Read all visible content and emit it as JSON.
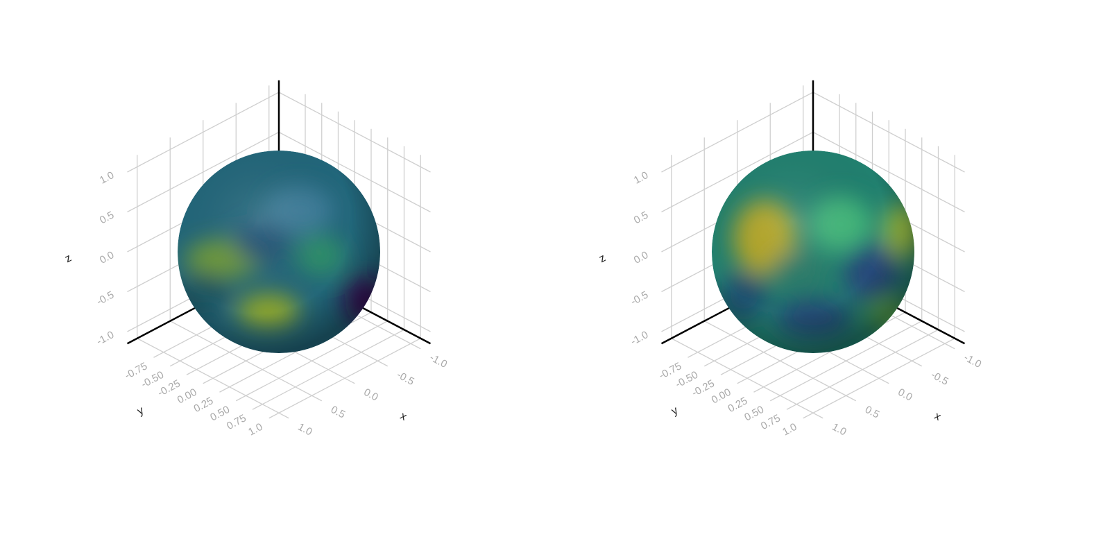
{
  "chart_data": [
    {
      "type": "surface3d",
      "xlabel": "x",
      "ylabel": "y",
      "zlabel": "z",
      "xlim": [
        -1.15,
        1.15
      ],
      "ylim": [
        -1.15,
        1.15
      ],
      "zlim": [
        -1.15,
        1.15
      ],
      "xticks": [
        {
          "value": -1,
          "label": "-1.0"
        },
        {
          "value": -0.5,
          "label": "-0.5"
        },
        {
          "value": 0,
          "label": "0.0"
        },
        {
          "value": 0.5,
          "label": "0.5"
        },
        {
          "value": 1,
          "label": "1.0"
        }
      ],
      "yticks": [
        {
          "value": -0.75,
          "label": "-0.75"
        },
        {
          "value": -0.5,
          "label": "-0.50"
        },
        {
          "value": -0.25,
          "label": "-0.25"
        },
        {
          "value": 0,
          "label": "0.00"
        },
        {
          "value": 0.25,
          "label": "0.25"
        },
        {
          "value": 0.5,
          "label": "0.50"
        },
        {
          "value": 0.75,
          "label": "0.75"
        },
        {
          "value": 1,
          "label": "1.0"
        }
      ],
      "zticks": [
        {
          "value": -1,
          "label": "-1.0"
        },
        {
          "value": -0.5,
          "label": "-0.5"
        },
        {
          "value": 0,
          "label": "0.0"
        },
        {
          "value": 0.5,
          "label": "0.5"
        },
        {
          "value": 1,
          "label": "1.0"
        }
      ]
    },
    {
      "type": "surface3d",
      "xlabel": "x",
      "ylabel": "y",
      "zlabel": "z",
      "xlim": [
        -1.15,
        1.15
      ],
      "ylim": [
        -1.15,
        1.15
      ],
      "zlim": [
        -1.15,
        1.15
      ],
      "xticks": [
        {
          "value": -1,
          "label": "-1.0"
        },
        {
          "value": -0.5,
          "label": "-0.5"
        },
        {
          "value": 0,
          "label": "0.0"
        },
        {
          "value": 0.5,
          "label": "0.5"
        },
        {
          "value": 1,
          "label": "1.0"
        }
      ],
      "yticks": [
        {
          "value": -0.75,
          "label": "-0.75"
        },
        {
          "value": -0.5,
          "label": "-0.50"
        },
        {
          "value": -0.25,
          "label": "-0.25"
        },
        {
          "value": 0,
          "label": "0.00"
        },
        {
          "value": 0.25,
          "label": "0.25"
        },
        {
          "value": 0.5,
          "label": "0.50"
        },
        {
          "value": 0.75,
          "label": "0.75"
        },
        {
          "value": 1,
          "label": "1.0"
        }
      ],
      "zticks": [
        {
          "value": -1,
          "label": "-1.0"
        },
        {
          "value": -0.5,
          "label": "-0.5"
        },
        {
          "value": 0,
          "label": "0.0"
        },
        {
          "value": 0.5,
          "label": "0.5"
        },
        {
          "value": 1,
          "label": "1.0"
        }
      ]
    }
  ]
}
